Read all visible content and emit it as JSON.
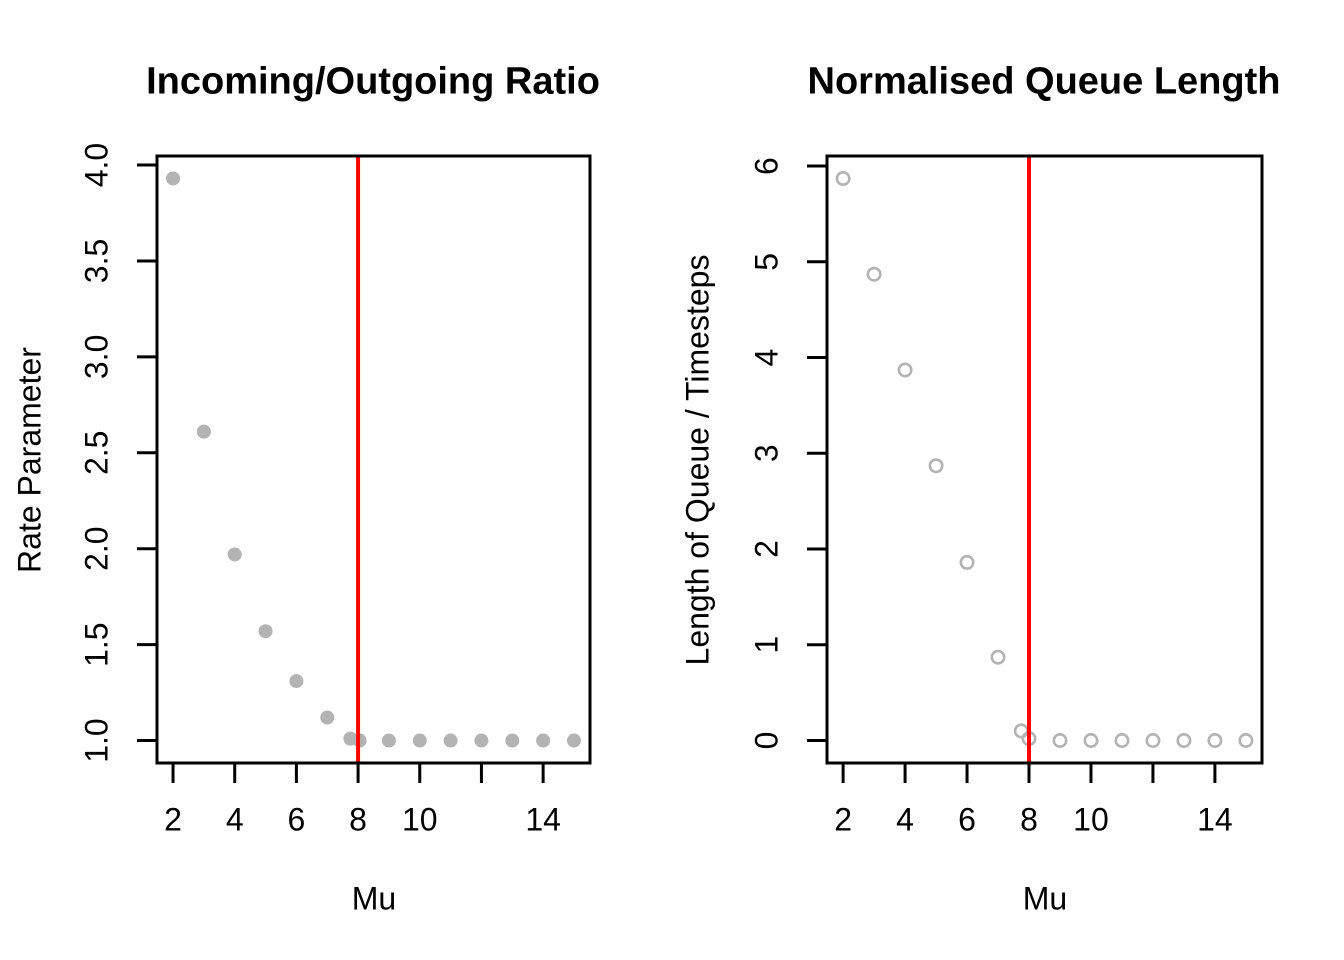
{
  "figure": {
    "background": "#FFFFFF",
    "point_gray": "#B3B3B3",
    "line_red": "#FF0000",
    "axis_black": "#000000"
  },
  "chart_data": [
    {
      "type": "scatter",
      "title": "Incoming/Outgoing Ratio",
      "xlabel": "Mu",
      "ylabel": "Rate Parameter",
      "marker": "filled-circle",
      "x": [
        2,
        3,
        4,
        5,
        6,
        7,
        7.75,
        8.05,
        9,
        10,
        11,
        12,
        13,
        14,
        15
      ],
      "y": [
        3.93,
        2.61,
        1.97,
        1.57,
        1.31,
        1.12,
        1.01,
        1.0,
        1.0,
        1.0,
        1.0,
        1.0,
        1.0,
        1.0,
        1.0
      ],
      "vline": {
        "x": 8,
        "color": "#FF0000"
      },
      "xlim": [
        1.48,
        15.52
      ],
      "ylim": [
        0.883,
        4.047
      ],
      "xticks": [
        2,
        4,
        6,
        8,
        10,
        12,
        14
      ],
      "xtick_labels": [
        "2",
        "4",
        "6",
        "8",
        "10",
        "",
        "14"
      ],
      "yticks": [
        1.0,
        1.5,
        2.0,
        2.5,
        3.0,
        3.5,
        4.0
      ],
      "ytick_labels": [
        "1.0",
        "1.5",
        "2.0",
        "2.5",
        "3.0",
        "3.5",
        "4.0"
      ],
      "grid": false,
      "legend": null
    },
    {
      "type": "scatter",
      "title": "Normalised Queue Length",
      "xlabel": "Mu",
      "ylabel": "Length of Queue / Timesteps",
      "marker": "open-circle",
      "x": [
        2,
        3,
        4,
        5,
        6,
        7,
        7.75,
        8.0,
        9,
        10,
        11,
        12,
        13,
        14,
        15
      ],
      "y": [
        5.87,
        4.87,
        3.87,
        2.87,
        1.86,
        0.87,
        0.1,
        0.02,
        0,
        0,
        0,
        0,
        0,
        0,
        0
      ],
      "vline": {
        "x": 8,
        "color": "#FF0000"
      },
      "xlim": [
        1.48,
        15.52
      ],
      "ylim": [
        -0.235,
        6.105
      ],
      "xticks": [
        2,
        4,
        6,
        8,
        10,
        12,
        14
      ],
      "xtick_labels": [
        "2",
        "4",
        "6",
        "8",
        "10",
        "",
        "14"
      ],
      "yticks": [
        0,
        1,
        2,
        3,
        4,
        5,
        6
      ],
      "ytick_labels": [
        "0",
        "1",
        "2",
        "3",
        "4",
        "5",
        "6"
      ],
      "grid": false,
      "legend": null
    }
  ]
}
